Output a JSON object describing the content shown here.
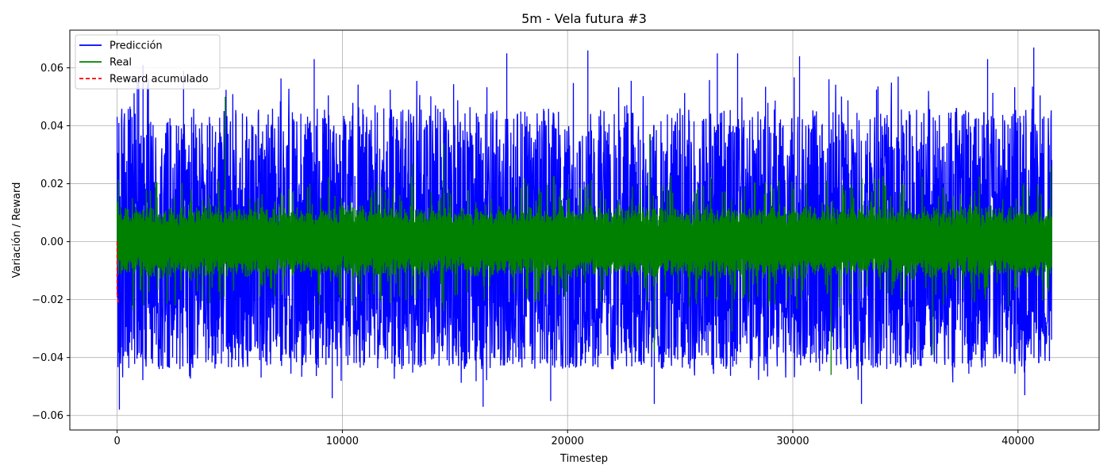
{
  "chart_data": {
    "type": "line",
    "title": "5m - Vela futura #3",
    "xlabel": "Timestep",
    "ylabel": "Variación / Reward",
    "xlim": [
      -2100,
      43600
    ],
    "ylim": [
      -0.065,
      0.073
    ],
    "x_ticks": [
      {
        "value": 0,
        "label": "0"
      },
      {
        "value": 10000,
        "label": "10000"
      },
      {
        "value": 20000,
        "label": "20000"
      },
      {
        "value": 30000,
        "label": "30000"
      },
      {
        "value": 40000,
        "label": "40000"
      }
    ],
    "y_ticks": [
      {
        "value": -0.06,
        "label": "−0.06"
      },
      {
        "value": -0.04,
        "label": "−0.04"
      },
      {
        "value": -0.02,
        "label": "−0.02"
      },
      {
        "value": 0.0,
        "label": "0.00"
      },
      {
        "value": 0.02,
        "label": "0.02"
      },
      {
        "value": 0.04,
        "label": "0.04"
      },
      {
        "value": 0.06,
        "label": "0.06"
      }
    ],
    "grid": true,
    "legend_position": "top-left",
    "series": [
      {
        "name": "Predicción",
        "color": "#0000ff",
        "style": "solid",
        "x_range": [
          0,
          41500
        ],
        "summary": "dense high-frequency noise, roughly between -0.045 and 0.05, centred near -0.005",
        "peaks": [
          {
            "x": 100,
            "y": -0.058
          },
          {
            "x": 1150,
            "y": 0.061
          },
          {
            "x": 2950,
            "y": 0.059
          },
          {
            "x": 8750,
            "y": 0.063
          },
          {
            "x": 9550,
            "y": -0.054
          },
          {
            "x": 16250,
            "y": -0.057
          },
          {
            "x": 17300,
            "y": 0.065
          },
          {
            "x": 19250,
            "y": -0.055
          },
          {
            "x": 20900,
            "y": 0.066
          },
          {
            "x": 23850,
            "y": -0.056
          },
          {
            "x": 26650,
            "y": 0.065
          },
          {
            "x": 27550,
            "y": 0.065
          },
          {
            "x": 30300,
            "y": 0.064
          },
          {
            "x": 33050,
            "y": -0.056
          },
          {
            "x": 38650,
            "y": 0.063
          },
          {
            "x": 40300,
            "y": -0.053
          },
          {
            "x": 40700,
            "y": 0.067
          }
        ]
      },
      {
        "name": "Real",
        "color": "#008000",
        "style": "solid",
        "x_range": [
          0,
          41500
        ],
        "summary": "dense noise mostly between -0.01 and 0.01 with occasional spikes",
        "peaks": [
          {
            "x": 4800,
            "y": 0.05
          },
          {
            "x": 4750,
            "y": -0.019
          },
          {
            "x": 13100,
            "y": 0.027
          },
          {
            "x": 14500,
            "y": 0.034
          },
          {
            "x": 14500,
            "y": -0.024
          },
          {
            "x": 23650,
            "y": 0.037
          },
          {
            "x": 23850,
            "y": -0.038
          },
          {
            "x": 27300,
            "y": -0.031
          },
          {
            "x": 31700,
            "y": -0.046
          },
          {
            "x": 36200,
            "y": -0.039
          },
          {
            "x": 41450,
            "y": 0.026
          }
        ]
      },
      {
        "name": "Reward acumulado",
        "color": "#ff0000",
        "style": "dashed",
        "x": [
          0,
          0,
          0,
          50
        ],
        "y": [
          0.0,
          -0.009,
          -0.018,
          -0.021
        ]
      }
    ]
  }
}
